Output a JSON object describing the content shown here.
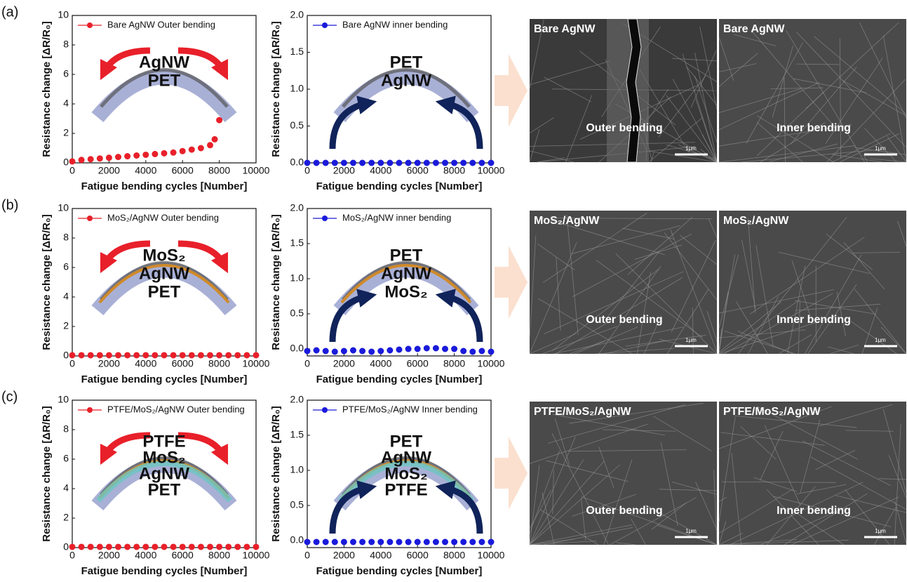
{
  "panels": [
    "(a)",
    "(b)",
    "(c)"
  ],
  "chart_data": [
    {
      "type": "scatter",
      "xlabel": "Fatigue bending cycles [Number]",
      "ylabel": "Resistance change [ΔR/R₀]",
      "xlim": [
        0,
        10000
      ],
      "xticks": [
        0,
        2000,
        4000,
        6000,
        8000,
        10000
      ],
      "ylim": [
        0,
        10
      ],
      "yticks": [
        0,
        2,
        4,
        6,
        8,
        10
      ],
      "annotations": [
        "AgNW",
        "PET"
      ],
      "series": [
        {
          "name": "Bare AgNW Outer bending",
          "color": "#e8202a",
          "x": [
            0,
            500,
            1000,
            1500,
            2000,
            2500,
            3000,
            3500,
            4000,
            4500,
            5000,
            5500,
            6000,
            6500,
            7000,
            7500,
            7750,
            8000
          ],
          "values": [
            0.1,
            0.2,
            0.25,
            0.3,
            0.35,
            0.4,
            0.45,
            0.5,
            0.55,
            0.6,
            0.65,
            0.7,
            0.8,
            0.9,
            1.0,
            1.2,
            1.6,
            2.9
          ]
        }
      ]
    },
    {
      "type": "scatter",
      "xlabel": "Fatigue bending cycles [Number]",
      "ylabel": "Resistance change [ΔR/R₀]",
      "xlim": [
        0,
        10000
      ],
      "xticks": [
        0,
        2000,
        4000,
        6000,
        8000,
        10000
      ],
      "ylim": [
        0,
        2
      ],
      "yticks": [
        {
          "value": 0,
          "label": "0.0"
        },
        0.5,
        {
          "value": 1,
          "label": "1.0"
        },
        1.5,
        {
          "value": 2,
          "label": "2.0"
        }
      ],
      "annotations": [
        "PET",
        "AgNW"
      ],
      "series": [
        {
          "name": "Bare AgNW inner bending",
          "color": "#1a1adb",
          "x": [
            0,
            500,
            1000,
            1500,
            2000,
            2500,
            3000,
            3500,
            4000,
            4500,
            5000,
            5500,
            6000,
            6500,
            7000,
            7500,
            8000,
            8500,
            9000,
            9500,
            10000
          ],
          "values": [
            0,
            0,
            0,
            0,
            0,
            0,
            0,
            0,
            0,
            0,
            0,
            0,
            0,
            0,
            0,
            0,
            0,
            0,
            0,
            0,
            0
          ]
        }
      ]
    },
    {
      "type": "scatter",
      "xlabel": "Fatigue bending cycles [Number]",
      "ylabel": "Resistance change [ΔR/R₀]",
      "xlim": [
        0,
        10000
      ],
      "xticks": [
        0,
        2000,
        4000,
        6000,
        8000,
        10000
      ],
      "ylim": [
        0,
        10
      ],
      "yticks": [
        0,
        2,
        4,
        6,
        8,
        10
      ],
      "annotations": [
        "MoS₂",
        "AgNW",
        "PET"
      ],
      "series": [
        {
          "name": "MoS₂/AgNW Outer bending",
          "color": "#e8202a",
          "x": [
            0,
            500,
            1000,
            1500,
            2000,
            2500,
            3000,
            3500,
            4000,
            4500,
            5000,
            5500,
            6000,
            6500,
            7000,
            7500,
            8000,
            8500,
            9000,
            9500,
            10000
          ],
          "values": [
            0.05,
            0.05,
            0.05,
            0.05,
            0.05,
            0.05,
            0.05,
            0.05,
            0.05,
            0.05,
            0.05,
            0.05,
            0.05,
            0.05,
            0.05,
            0.05,
            0.05,
            0.05,
            0.05,
            0.05,
            0.05
          ]
        }
      ]
    },
    {
      "type": "scatter",
      "xlabel": "Fatigue bending cycles [Number]",
      "ylabel": "Resistance change [ΔR/R₀]",
      "xlim": [
        0,
        10000
      ],
      "xticks": [
        0,
        2000,
        4000,
        6000,
        8000,
        10000
      ],
      "ylim": [
        -0.1,
        2
      ],
      "yticks": [
        {
          "value": 0,
          "label": "0.0"
        },
        0.5,
        {
          "value": 1,
          "label": "1.0"
        },
        1.5,
        {
          "value": 2,
          "label": "2.0"
        }
      ],
      "annotations": [
        "PET",
        "AgNW",
        "MoS₂"
      ],
      "series": [
        {
          "name": "MoS₂/AgNW inner bending",
          "color": "#1a1adb",
          "x": [
            0,
            500,
            1000,
            1500,
            2000,
            2500,
            3000,
            3500,
            4000,
            4500,
            5000,
            5500,
            6000,
            6500,
            7000,
            7500,
            8000,
            8500,
            9000,
            9500,
            10000
          ],
          "values": [
            -0.03,
            -0.02,
            -0.03,
            -0.04,
            -0.03,
            -0.02,
            -0.03,
            -0.04,
            -0.03,
            -0.02,
            -0.01,
            0,
            0,
            0.01,
            0.01,
            0,
            0,
            -0.03,
            -0.04,
            -0.03,
            -0.04
          ]
        }
      ]
    },
    {
      "type": "scatter",
      "xlabel": "Fatigue bending cycles [Number]",
      "ylabel": "Resistance change [ΔR/R₀]",
      "xlim": [
        0,
        10000
      ],
      "xticks": [
        0,
        2000,
        4000,
        6000,
        8000,
        10000
      ],
      "ylim": [
        0,
        10
      ],
      "yticks": [
        0,
        2,
        4,
        6,
        8,
        10
      ],
      "annotations": [
        "PTFE",
        "MoS₂",
        "AgNW",
        "PET"
      ],
      "series": [
        {
          "name": "PTFE/MoS₂/AgNW Outer bending",
          "color": "#e8202a",
          "x": [
            0,
            500,
            1000,
            1500,
            2000,
            2500,
            3000,
            3500,
            4000,
            4500,
            5000,
            5500,
            6000,
            6500,
            7000,
            7500,
            8000,
            8500,
            9000,
            9500,
            10000
          ],
          "values": [
            0.05,
            0.05,
            0.05,
            0.05,
            0.05,
            0.05,
            0.05,
            0.05,
            0.05,
            0.05,
            0.05,
            0.05,
            0.05,
            0.05,
            0.05,
            0.05,
            0.05,
            0.05,
            0.05,
            0.05,
            0.05
          ]
        }
      ]
    },
    {
      "type": "scatter",
      "xlabel": "Fatigue bending cycles [Number]",
      "ylabel": "Resistance change [ΔR/R₀]",
      "xlim": [
        0,
        10000
      ],
      "xticks": [
        0,
        2000,
        4000,
        6000,
        8000,
        10000
      ],
      "ylim": [
        -0.1,
        2
      ],
      "yticks": [
        {
          "value": 0,
          "label": "0.0"
        },
        0.5,
        {
          "value": 1,
          "label": "1.0"
        },
        1.5,
        {
          "value": 2,
          "label": "2.0"
        }
      ],
      "annotations": [
        "PET",
        "AgNW",
        "MoS₂",
        "PTFE"
      ],
      "series": [
        {
          "name": "PTFE/MoS₂/AgNW Inner bending",
          "color": "#1a1adb",
          "x": [
            0,
            500,
            1000,
            1500,
            2000,
            2500,
            3000,
            3500,
            4000,
            4500,
            5000,
            5500,
            6000,
            6500,
            7000,
            7500,
            8000,
            8500,
            9000,
            9500,
            10000
          ],
          "values": [
            -0.02,
            -0.02,
            -0.02,
            -0.02,
            -0.02,
            -0.02,
            -0.02,
            -0.02,
            -0.02,
            -0.02,
            -0.02,
            -0.02,
            -0.02,
            -0.02,
            -0.02,
            -0.02,
            -0.02,
            -0.02,
            -0.02,
            -0.02,
            -0.02
          ]
        }
      ]
    }
  ],
  "sem": [
    [
      {
        "label": "Bare AgNW",
        "caption": "Outer bending",
        "scale": "1μm"
      },
      {
        "label": "Bare AgNW",
        "caption": "Inner bending",
        "scale": "1μm"
      }
    ],
    [
      {
        "label": "MoS₂/AgNW",
        "caption": "Outer bending",
        "scale": "1μm"
      },
      {
        "label": "MoS₂/AgNW",
        "caption": "Inner bending",
        "scale": "1μm"
      }
    ],
    [
      {
        "label": "PTFE/MoS₂/AgNW",
        "caption": "Outer bending",
        "scale": "1μm"
      },
      {
        "label": "PTFE/MoS₂/AgNW",
        "caption": "Inner bending",
        "scale": "1μm"
      }
    ]
  ]
}
